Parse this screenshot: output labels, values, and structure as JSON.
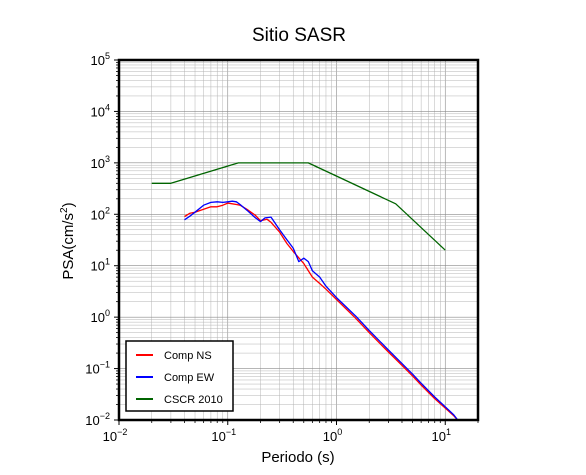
{
  "chart_data": {
    "type": "line",
    "title": "Sitio SASR",
    "xlabel": "Periodo (s)",
    "ylabel_prefix": "PSA(cm/s",
    "ylabel_sup": "2",
    "ylabel_suffix": ")",
    "xscale": "log",
    "yscale": "log",
    "xlim": [
      0.01,
      20
    ],
    "ylim": [
      0.01,
      100000
    ],
    "grid": true,
    "legend_position": "bottom-left",
    "x_ticks": [
      {
        "base": "10",
        "exp": "−2",
        "value": 0.01
      },
      {
        "base": "10",
        "exp": "−1",
        "value": 0.1
      },
      {
        "base": "10",
        "exp": "0",
        "value": 1
      },
      {
        "base": "10",
        "exp": "1",
        "value": 10
      }
    ],
    "y_ticks": [
      {
        "base": "10",
        "exp": "−2",
        "value": 0.01
      },
      {
        "base": "10",
        "exp": "−1",
        "value": 0.1
      },
      {
        "base": "10",
        "exp": "0",
        "value": 1
      },
      {
        "base": "10",
        "exp": "1",
        "value": 10
      },
      {
        "base": "10",
        "exp": "2",
        "value": 100
      },
      {
        "base": "10",
        "exp": "3",
        "value": 1000
      },
      {
        "base": "10",
        "exp": "4",
        "value": 10000
      },
      {
        "base": "10",
        "exp": "5",
        "value": 100000
      }
    ],
    "series": [
      {
        "name": "Comp NS",
        "color": "#ff0000",
        "points": [
          [
            0.04,
            90
          ],
          [
            0.045,
            105
          ],
          [
            0.05,
            110
          ],
          [
            0.06,
            125
          ],
          [
            0.07,
            140
          ],
          [
            0.08,
            140
          ],
          [
            0.09,
            150
          ],
          [
            0.1,
            165
          ],
          [
            0.11,
            160
          ],
          [
            0.12,
            155
          ],
          [
            0.13,
            150
          ],
          [
            0.15,
            125
          ],
          [
            0.18,
            95
          ],
          [
            0.2,
            75
          ],
          [
            0.23,
            80
          ],
          [
            0.25,
            70
          ],
          [
            0.3,
            45
          ],
          [
            0.35,
            27
          ],
          [
            0.4,
            19
          ],
          [
            0.5,
            11
          ],
          [
            0.6,
            6
          ],
          [
            0.7,
            4.5
          ],
          [
            0.8,
            3.5
          ],
          [
            1,
            2.2
          ],
          [
            1.5,
            0.95
          ],
          [
            2,
            0.5
          ],
          [
            3,
            0.21
          ],
          [
            4,
            0.115
          ],
          [
            5,
            0.072
          ],
          [
            6,
            0.048
          ],
          [
            8,
            0.026
          ],
          [
            10,
            0.017
          ],
          [
            12,
            0.012
          ],
          [
            13,
            0.01
          ]
        ]
      },
      {
        "name": "Comp EW",
        "color": "#0000ff",
        "points": [
          [
            0.04,
            78
          ],
          [
            0.045,
            92
          ],
          [
            0.05,
            110
          ],
          [
            0.06,
            150
          ],
          [
            0.07,
            170
          ],
          [
            0.08,
            175
          ],
          [
            0.09,
            170
          ],
          [
            0.1,
            175
          ],
          [
            0.11,
            180
          ],
          [
            0.12,
            175
          ],
          [
            0.13,
            155
          ],
          [
            0.15,
            120
          ],
          [
            0.18,
            85
          ],
          [
            0.2,
            72
          ],
          [
            0.22,
            85
          ],
          [
            0.25,
            88
          ],
          [
            0.3,
            50
          ],
          [
            0.35,
            32
          ],
          [
            0.4,
            22
          ],
          [
            0.45,
            12
          ],
          [
            0.5,
            14
          ],
          [
            0.55,
            12
          ],
          [
            0.6,
            8
          ],
          [
            0.7,
            6
          ],
          [
            0.8,
            4
          ],
          [
            1,
            2.4
          ],
          [
            1.5,
            1.05
          ],
          [
            2,
            0.55
          ],
          [
            3,
            0.23
          ],
          [
            4,
            0.125
          ],
          [
            5,
            0.078
          ],
          [
            6,
            0.052
          ],
          [
            8,
            0.028
          ],
          [
            10,
            0.018
          ],
          [
            12,
            0.0125
          ],
          [
            13,
            0.01
          ]
        ]
      },
      {
        "name": "CSCR 2010",
        "color": "#006400",
        "points": [
          [
            0.02,
            400
          ],
          [
            0.03,
            400
          ],
          [
            0.125,
            1000
          ],
          [
            0.55,
            1000
          ],
          [
            3.5,
            160
          ],
          [
            10,
            20
          ]
        ]
      }
    ]
  }
}
